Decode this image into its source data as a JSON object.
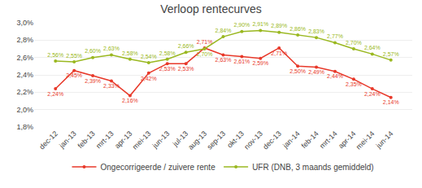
{
  "chart_data": {
    "type": "line",
    "title": "Verloop rentecurves",
    "categories": [
      "dec-12",
      "jan-13",
      "feb-13",
      "mrt-13",
      "apr-13",
      "mei-13",
      "jun-13",
      "jul-13",
      "aug-13",
      "sep-13",
      "okt-13",
      "nov-13",
      "dec-13",
      "jan-14",
      "feb-14",
      "mrt-14",
      "apr-14",
      "mei-14",
      "jun-14"
    ],
    "series": [
      {
        "name": "Ongecorrigeerde / zuivere rente",
        "color": "#e8392a",
        "marker": "circle",
        "values": [
          2.24,
          2.45,
          2.39,
          2.33,
          2.16,
          2.42,
          2.53,
          2.53,
          2.71,
          2.63,
          2.61,
          2.59,
          2.71,
          2.5,
          2.49,
          2.44,
          2.35,
          2.24,
          2.14
        ],
        "value_labels": [
          "2,24%",
          "2,45%",
          "2,39%",
          "2,33%",
          "2,16%",
          "2,42%",
          "2,53%",
          "2,53%",
          "2,71%",
          "2,63%",
          "2,61%",
          "2,59%",
          "2,71%",
          "2,50%",
          "2,49%",
          "2,44%",
          "2,35%",
          "2,24%",
          "2,14%"
        ]
      },
      {
        "name": "UFR (DNB, 3 maands gemiddeld)",
        "color": "#9ab820",
        "marker": "circle",
        "values": [
          2.56,
          2.55,
          2.6,
          2.63,
          2.58,
          2.54,
          2.58,
          2.66,
          2.7,
          2.84,
          2.9,
          2.91,
          2.89,
          2.86,
          2.83,
          2.77,
          2.7,
          2.64,
          2.57
        ],
        "value_labels": [
          "2,56%",
          "2,55%",
          "2,60%",
          "2,63%",
          "2,58%",
          "2,54%",
          "2,58%",
          "2,66%",
          "2,70%",
          "2,84%",
          "2,90%",
          "2,91%",
          "2,89%",
          "2,86%",
          "2,83%",
          "2,77%",
          "2,70%",
          "2,64%",
          "2,57%"
        ]
      }
    ],
    "ylim": [
      1.8,
      3.0
    ],
    "yticks": [
      {
        "value": 1.8,
        "label": "1,8%"
      },
      {
        "value": 2.0,
        "label": "2,0%"
      },
      {
        "value": 2.2,
        "label": "2,2%"
      },
      {
        "value": 2.4,
        "label": "2,4%"
      },
      {
        "value": 2.6,
        "label": "2,6%"
      },
      {
        "value": 2.8,
        "label": "2,8%"
      },
      {
        "value": 3.0,
        "label": "3,0%"
      }
    ],
    "grid": true,
    "legend": "bottom",
    "data_labels": true
  }
}
